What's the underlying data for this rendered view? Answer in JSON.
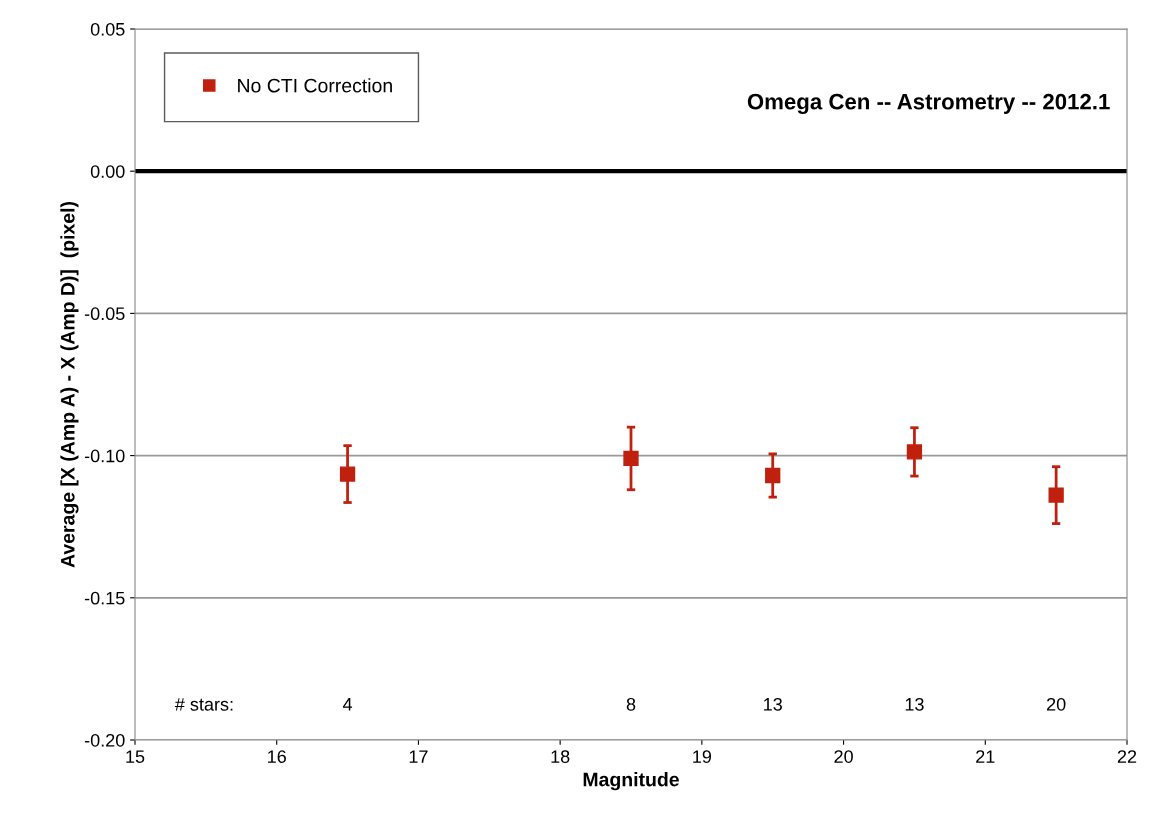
{
  "chart_data": {
    "type": "scatter",
    "title": "Omega Cen -- Astrometry -- 2012.1",
    "xlabel": "Magnitude",
    "ylabel": "Average [X (Amp A) - X (Amp D)]  (pixel)",
    "series": [
      {
        "name": "No CTI Correction",
        "color": "#c0200e",
        "x": [
          16.5,
          18.5,
          19.5,
          20.5,
          21.5
        ],
        "values": [
          -0.1065,
          -0.101,
          -0.107,
          -0.0987,
          -0.1139
        ],
        "errors": [
          0.01,
          0.011,
          0.0076,
          0.0085,
          0.01
        ]
      }
    ],
    "xlim": [
      15,
      22
    ],
    "xticks": [
      15,
      16,
      17,
      18,
      19,
      20,
      21,
      22
    ],
    "ylim": [
      -0.2,
      0.05
    ],
    "yticks": [
      {
        "value": -0.2,
        "label": "-0.20"
      },
      {
        "value": -0.15,
        "label": "-0.15"
      },
      {
        "value": -0.1,
        "label": "-0.10"
      },
      {
        "value": -0.05,
        "label": "-0.05"
      },
      {
        "value": 0,
        "label": "0.00"
      },
      {
        "value": 0.05,
        "label": "0.05"
      }
    ],
    "ref_lines": [
      {
        "axis": "y",
        "value": 0,
        "color": "#000000"
      }
    ],
    "annotations": [
      "# stars:",
      "4",
      "8",
      "13",
      "13",
      "20"
    ],
    "grid": "y",
    "legend": "top left",
    "marker": "square"
  }
}
